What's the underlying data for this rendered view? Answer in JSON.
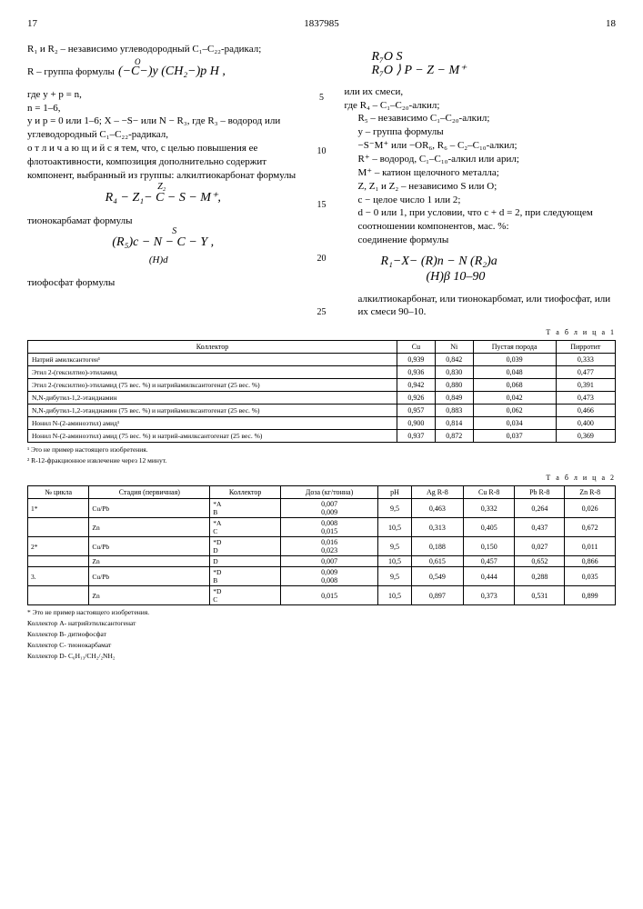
{
  "page_left": "17",
  "patent_no": "1837985",
  "page_right": "18",
  "left_col": {
    "p1": "R₁ и R₂ – независимо углеводородный С₁–С₂₂-радикал;",
    "p2": "R – группа формулы",
    "f1": "(−C−)y (CH₂−)p H ,",
    "f1sup": "O",
    "p3": "где y + p = n,",
    "p4": "n = 1–6,",
    "p5": "y и p = 0 или 1–6; X – −S− или N − R₃, где R₃ – водород или углеводородный С₁–С₂₂-радикал,",
    "p6": "о т л и ч а ю щ и й с я  тем, что, с целью повышения ее флотоактивности, композиция дополнительно содержит компонент, выбранный из группы: алкилтиокарбонат формулы",
    "f2": "R₄ − Z₁− C − S − M⁺,",
    "f2sup": "Z₂",
    "p7": "тионокарбамат формулы",
    "f3": "(R₅)c − N − C − Y ,",
    "f3sup": "S",
    "f3sub": "(H)d",
    "p8": "тиофосфат формулы"
  },
  "right_col": {
    "f4a": "R₇O    S",
    "f4b": "R₇O ⟩ P − Z − M⁺",
    "p1": "или их смеси,",
    "p2": "где R₄ – С₁–С₂₀-алкил;",
    "p3": "R₅ – независимо С₁–С₂₀-алкил;",
    "p4": "y – группа формулы",
    "p5": "−S⁻M⁺ или −OR₆,   R₆ – C₂–С₁₀-алкил;",
    "p6": "R⁺ – водород, С₁–С₁₀-алкил или арил;",
    "p7": "M⁺ – катион щелочного металла;",
    "p8": "Z, Z₁ и Z₂ – независимо S или O;",
    "p9": "c − целое число 1 или 2;",
    "p10": "d − 0 или 1, при условии, что c + d = 2, при следующем соотношении компонентов, мас. %:",
    "p11": "соединение формулы",
    "f5a": "R₁−X− (R)n − N (R₂)a",
    "f5b": "(H)β          10–90",
    "p12": "алкилтиокарбонат, или тионокарбомат, или тиофосфат, или их смеси          90–10."
  },
  "table1": {
    "title": "Т а б л и ц а  1",
    "headers": [
      "Коллектор",
      "Cu",
      "Ni",
      "Пустая порода",
      "Пирротит"
    ],
    "rows": [
      [
        "Натрий амилксантоген¹",
        "0,939",
        "0,842",
        "0,039",
        "0,333"
      ],
      [
        "Этил 2-(гексилтио)-этиламид",
        "0,936",
        "0,830",
        "0,048",
        "0,477"
      ],
      [
        "Этил 2-(гексилтио)-этиламид (75 вес. %) и натрийамилксантогенат (25 вес. %)",
        "0,942",
        "0,880",
        "0,068",
        "0,391"
      ],
      [
        "N,N-дибутил-1,2-этандиамин",
        "0,926",
        "0,849",
        "0,042",
        "0,473"
      ],
      [
        "N,N-дибутил-1,2-этандиамин (75 вес. %) и натрийамилксантогенат (25 вес. %)",
        "0,957",
        "0,883",
        "0,062",
        "0,466"
      ],
      [
        "Нонил N-(2-аминоэтил) амид¹",
        "0,900",
        "0,814",
        "0,034",
        "0,400"
      ],
      [
        "Нонил N-(2-аминоэтил) амид (75 вес. %) и натрий-амилксантогенат (25 вес. %)",
        "0,937",
        "0,872",
        "0,037",
        "0,369"
      ]
    ],
    "fn1": "¹ Это не пример настоящего изобретения.",
    "fn2": "² R-12-фракционное извлечение через 12 минут."
  },
  "table2": {
    "title": "Т а б л и ц а  2",
    "headers": [
      "№ цикла",
      "Стадия (первичная)",
      "Коллектор",
      "Доза (кг/тонна)",
      "pH",
      "Ag R-8",
      "Cu R-8",
      "Pb R-8",
      "Zn R-8"
    ],
    "rows": [
      [
        "1*",
        "Cu/Pb",
        "*A\nB",
        "0,007\n0,009",
        "9,5",
        "0,463",
        "0,332",
        "0,264",
        "0,026"
      ],
      [
        "",
        "Zn",
        "*A\nC",
        "0,008\n0,015",
        "10,5",
        "0,313",
        "0,405",
        "0,437",
        "0,672"
      ],
      [
        "2*",
        "Cu/Pb",
        "*D\nD",
        "0,016\n0,023",
        "9,5",
        "0,188",
        "0,150",
        "0,027",
        "0,011"
      ],
      [
        "",
        "Zn",
        "D",
        "0,007",
        "10,5",
        "0,615",
        "0,457",
        "0,652",
        "0,866"
      ],
      [
        "3.",
        "Cu/Pb",
        "*D\nB",
        "0,009\n0,008",
        "9,5",
        "0,549",
        "0,444",
        "0,288",
        "0,035"
      ],
      [
        "",
        "Zn",
        "*D\nC",
        "0,015",
        "10,5",
        "0,897",
        "0,373",
        "0,531",
        "0,899"
      ]
    ],
    "fn1": "* Это не пример настоящего изобретения.",
    "fn2": "Коллектор A- натрийэтилксантогенат",
    "fn3": "Коллектор B- дитиофосфат",
    "fn4": "Коллектор C- тионокарбамат",
    "fn5": "Коллектор D- C₆H₁₃/CH₂/₂NH₂"
  }
}
